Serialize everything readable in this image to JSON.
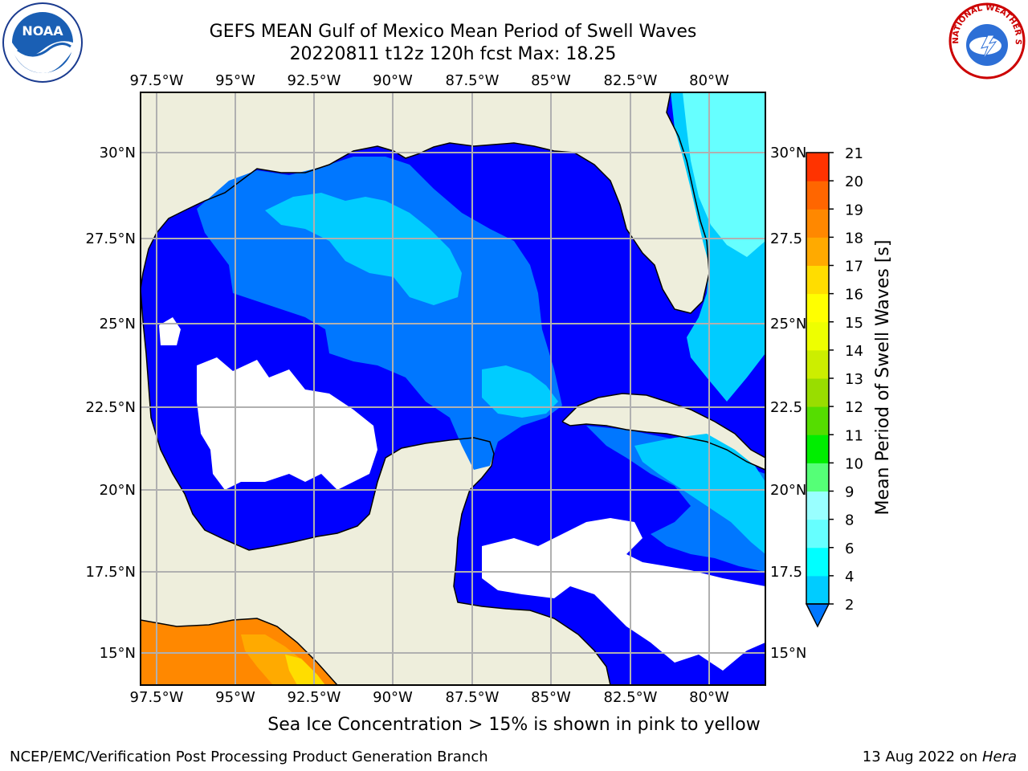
{
  "title_line1": "GEFS MEAN Gulf of Mexico Mean Period of Swell Waves",
  "title_line2": "20220811 t12z 120h fcst   Max: 18.25",
  "caption": "Sea Ice Concentration > 15% is shown in pink to yellow",
  "footer_left": "NCEP/EMC/Verification Post Processing Product Generation Branch",
  "footer_right_prefix": "13 Aug 2022 on ",
  "footer_right_host": "Hera",
  "logos": {
    "left": "noaa-logo",
    "right": "nws-logo",
    "left_text": "NOAA",
    "right_text": "NATIONAL WEATHER SERVICE"
  },
  "map": {
    "lon_labels": [
      "97.5°W",
      "95°W",
      "92.5°W",
      "90°W",
      "87.5°W",
      "85°W",
      "82.5°W",
      "80°W"
    ],
    "lat_labels_left": [
      "30°N",
      "27.5°N",
      "25°N",
      "22.5°N",
      "20°N",
      "17.5°N",
      "15°N"
    ],
    "lat_labels_right": [
      "30°N",
      "27.5",
      "25°N",
      "22.5",
      "20°N",
      "17.5",
      "15°N"
    ],
    "colors": {
      "land": "#eeeedc",
      "ocean_low": "#0000ff",
      "grid": "#b0b0b0"
    }
  },
  "colorbar": {
    "label": "Mean Period of Swell Waves [s]",
    "ticks": [
      "2",
      "4",
      "6",
      "8",
      "9",
      "10",
      "11",
      "12",
      "13",
      "14",
      "15",
      "16",
      "17",
      "18",
      "19",
      "20",
      "21"
    ],
    "colors": [
      "#0077ff",
      "#00ccff",
      "#00ffff",
      "#66ffff",
      "#99ffff",
      "#55ff77",
      "#00ee00",
      "#55dd00",
      "#99dd00",
      "#ccee00",
      "#eeff00",
      "#ffff00",
      "#ffdd00",
      "#ffaa00",
      "#ff8800",
      "#ff6600",
      "#ff3300",
      "#ff0000"
    ],
    "extend": "min"
  }
}
